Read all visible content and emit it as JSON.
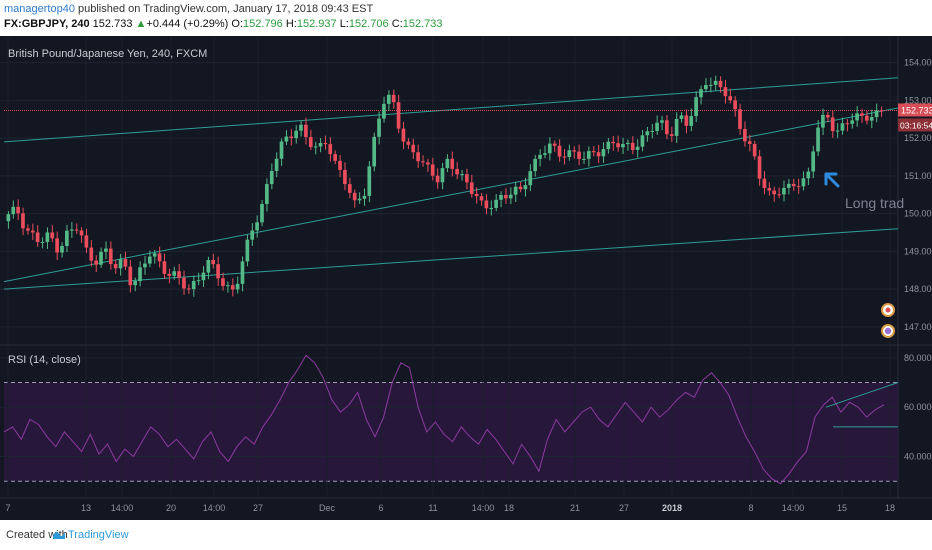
{
  "header": {
    "author": "managertop40",
    "published": " published on TradingView.com, January 17, 2018 09:43 EST",
    "symbol": "FX:GBPJPY",
    "interval": ", 240",
    "last": "152.733",
    "change": "+0.444 (+0.29%)",
    "o_label": "O:",
    "o": "152.796",
    "h_label": "H:",
    "h": "152.937",
    "l_label": "L:",
    "l": "152.706",
    "c_label": "C:",
    "c": "152.733"
  },
  "price_pane": {
    "title": "British Pound/Japanese Yen, 240, FXCM",
    "last_price_label": "152.733",
    "countdown_label": "03:16:54",
    "annotation": "Long trad"
  },
  "rsi_pane": {
    "title": "RSI (14, close)"
  },
  "footer": {
    "created_with": "Created with",
    "brand": "TradingView"
  },
  "colors": {
    "background": "#131722",
    "up": "#53b987",
    "down": "#eb4d5c",
    "trendline": "#2e9e96",
    "rsi_line": "#8e3aa0",
    "rsi_band": "#2a1740",
    "last_price": "#d84e57",
    "annotation_arrow": "#2d8ce0"
  },
  "chart_data": [
    {
      "type": "candlestick",
      "ylim": [
        146.6,
        154.6
      ],
      "y_ticks": [
        "154.000",
        "153.000",
        "152.000",
        "151.000",
        "150.000",
        "149.000",
        "148.000",
        "147.000"
      ],
      "x_ticks": [
        "7",
        "13",
        "14:00",
        "20",
        "14:00",
        "27",
        "Dec",
        "6",
        "11",
        "14:00",
        "18",
        "21",
        "27",
        "2018",
        "8",
        "14:00",
        "15",
        "18"
      ],
      "ohlc_close_path": [
        [
          0,
          149.8
        ],
        [
          3,
          150.1
        ],
        [
          5,
          149.6
        ],
        [
          8,
          149.2
        ],
        [
          10,
          149.4
        ],
        [
          12,
          149.1
        ],
        [
          14,
          149.5
        ],
        [
          16,
          149.6
        ],
        [
          18,
          149.0
        ],
        [
          20,
          148.8
        ],
        [
          22,
          149.0
        ],
        [
          24,
          148.5
        ],
        [
          26,
          148.8
        ],
        [
          28,
          148.1
        ],
        [
          30,
          148.5
        ],
        [
          32,
          149.0
        ],
        [
          34,
          148.7
        ],
        [
          36,
          148.4
        ],
        [
          38,
          148.2
        ],
        [
          40,
          148.0
        ],
        [
          42,
          148.3
        ],
        [
          44,
          148.7
        ],
        [
          46,
          148.4
        ],
        [
          48,
          148.1
        ],
        [
          50,
          148.0
        ],
        [
          52,
          148.8
        ],
        [
          54,
          149.6
        ],
        [
          56,
          150.3
        ],
        [
          58,
          151.2
        ],
        [
          60,
          151.7
        ],
        [
          62,
          152.1
        ],
        [
          64,
          152.4
        ],
        [
          66,
          151.9
        ],
        [
          68,
          151.6
        ],
        [
          70,
          152.0
        ],
        [
          72,
          151.3
        ],
        [
          74,
          150.8
        ],
        [
          76,
          150.2
        ],
        [
          78,
          150.6
        ],
        [
          80,
          151.8
        ],
        [
          82,
          152.9
        ],
        [
          84,
          153.1
        ],
        [
          86,
          152.2
        ],
        [
          88,
          151.6
        ],
        [
          90,
          151.4
        ],
        [
          92,
          151.2
        ],
        [
          94,
          151.0
        ],
        [
          96,
          151.3
        ],
        [
          98,
          151.1
        ],
        [
          100,
          150.9
        ],
        [
          102,
          150.6
        ],
        [
          104,
          150.0
        ],
        [
          106,
          150.3
        ],
        [
          108,
          150.5
        ],
        [
          110,
          150.6
        ],
        [
          112,
          150.5
        ],
        [
          114,
          151.2
        ],
        [
          116,
          151.6
        ],
        [
          118,
          151.8
        ],
        [
          120,
          151.5
        ],
        [
          122,
          151.7
        ],
        [
          124,
          151.6
        ],
        [
          126,
          151.4
        ],
        [
          128,
          151.6
        ],
        [
          130,
          151.8
        ],
        [
          132,
          151.9
        ],
        [
          134,
          151.7
        ],
        [
          136,
          151.8
        ],
        [
          138,
          152.0
        ],
        [
          140,
          152.2
        ],
        [
          142,
          152.4
        ],
        [
          144,
          152.1
        ],
        [
          146,
          152.6
        ],
        [
          148,
          152.3
        ],
        [
          150,
          153.0
        ],
        [
          152,
          153.6
        ],
        [
          154,
          153.4
        ],
        [
          156,
          153.2
        ],
        [
          158,
          152.8
        ],
        [
          160,
          152.2
        ],
        [
          162,
          151.6
        ],
        [
          164,
          150.8
        ],
        [
          166,
          150.5
        ],
        [
          168,
          150.7
        ],
        [
          170,
          150.6
        ],
        [
          172,
          150.8
        ],
        [
          174,
          151.0
        ],
        [
          176,
          152.3
        ],
        [
          178,
          152.5
        ],
        [
          180,
          152.2
        ],
        [
          182,
          152.4
        ],
        [
          184,
          152.6
        ],
        [
          186,
          152.4
        ],
        [
          188,
          152.7
        ],
        [
          190,
          152.73
        ]
      ],
      "last_price": 152.733
    },
    {
      "type": "line",
      "name": "RSI (14, close)",
      "ylim": [
        24,
        84
      ],
      "y_ticks": [
        "80.0000",
        "60.0000",
        "40.0000"
      ],
      "levels": [
        70,
        30
      ],
      "values": [
        50,
        52,
        47,
        55,
        53,
        48,
        44,
        50,
        46,
        42,
        49,
        41,
        45,
        38,
        43,
        40,
        46,
        52,
        49,
        44,
        47,
        43,
        39,
        46,
        50,
        42,
        38,
        44,
        48,
        45,
        52,
        57,
        63,
        70,
        75,
        81,
        78,
        72,
        63,
        58,
        61,
        66,
        55,
        48,
        56,
        70,
        78,
        76,
        60,
        50,
        54,
        49,
        46,
        52,
        48,
        45,
        51,
        47,
        42,
        37,
        45,
        40,
        34,
        47,
        55,
        50,
        54,
        58,
        60,
        55,
        52,
        57,
        62,
        58,
        54,
        60,
        56,
        59,
        63,
        66,
        64,
        71,
        74,
        70,
        65,
        56,
        48,
        42,
        35,
        31,
        29,
        33,
        38,
        42,
        56,
        61,
        64,
        58,
        62,
        60,
        56,
        59,
        61
      ]
    }
  ]
}
